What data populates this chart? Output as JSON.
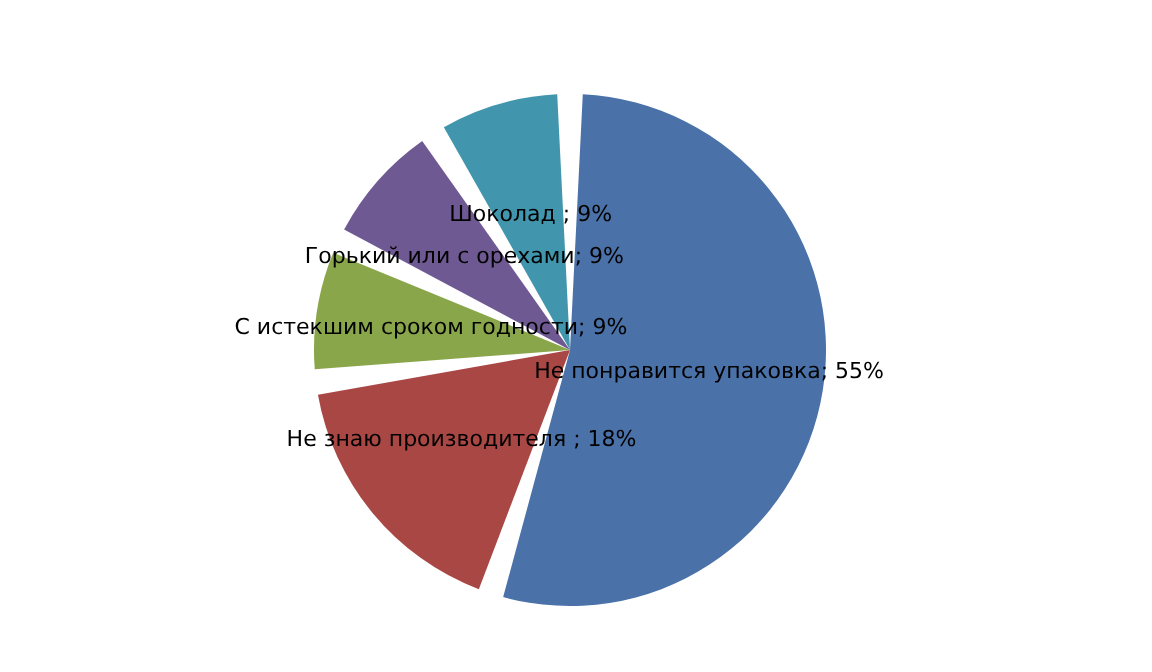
{
  "chart_data": {
    "type": "pie",
    "categories": [
      null,
      null,
      null,
      null,
      null
    ],
    "values": [
      55,
      18,
      9,
      9,
      9
    ],
    "value_labels": [
      "Не понравится упаковка; 55%",
      "Не знаю производителя ; 18%",
      "С истекшим сроком годности; 9%",
      "Горький или с орехами; 9%",
      "Шоколад  ; 9%"
    ],
    "colors": [
      "#4a72a8",
      "#a84744",
      "#8aa64a",
      "#6f5993",
      "#4196ad"
    ]
  }
}
